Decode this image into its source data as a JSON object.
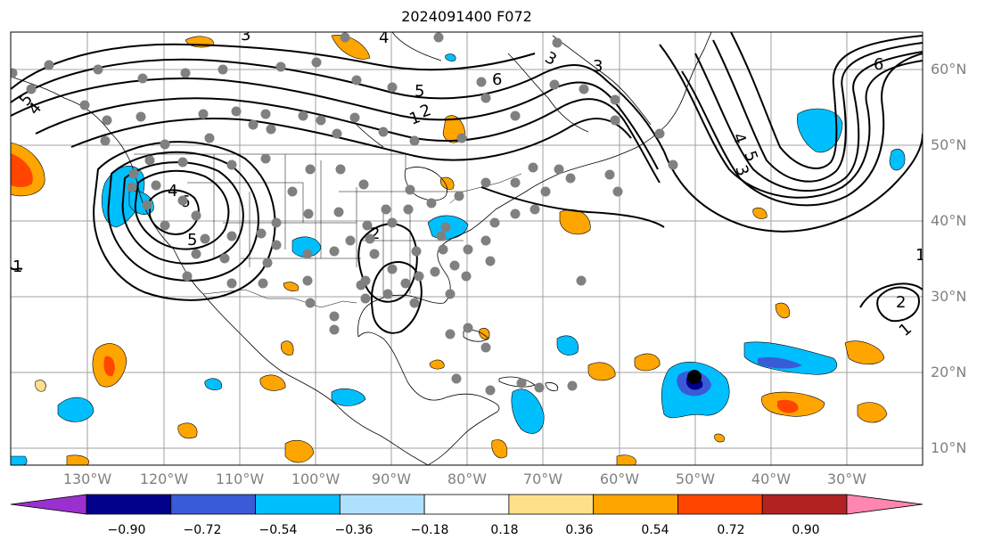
{
  "title": "2024091400 F072",
  "lat_labels": [
    "60°N",
    "50°N",
    "40°N",
    "30°N",
    "20°N",
    "10°N"
  ],
  "lon_labels": [
    "130°W",
    "120°W",
    "110°W",
    "100°W",
    "90°W",
    "80°W",
    "70°W",
    "60°W",
    "50°W",
    "40°W",
    "30°W"
  ],
  "colorbar": {
    "ticks": [
      "−0.90",
      "−0.72",
      "−0.54",
      "−0.36",
      "−0.18",
      "0.18",
      "0.36",
      "0.54",
      "0.72",
      "0.90"
    ],
    "colors": [
      "#9b30d0",
      "#00008b",
      "#3a5bd8",
      "#00bfff",
      "#aee0ff",
      "#ffffff",
      "#ffe08a",
      "#ffa500",
      "#ff4500",
      "#b22222",
      "#ff86b0"
    ]
  },
  "contour_labels": [
    "1",
    "2",
    "3",
    "4",
    "5",
    "6"
  ],
  "colors": {
    "contour": "#000000",
    "grid": "#a0a0a0",
    "station": "#808080",
    "coast": "#000000"
  }
}
